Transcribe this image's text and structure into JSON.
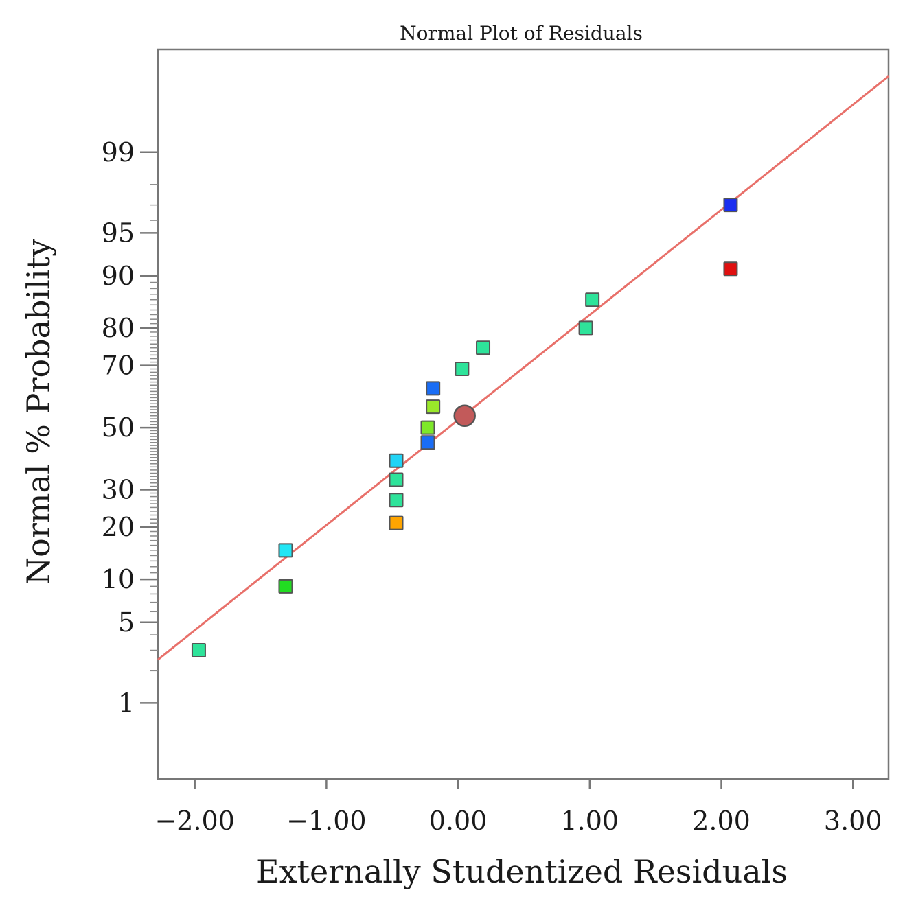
{
  "chart_data": {
    "type": "scatter",
    "title": "Normal Plot of Residuals",
    "xlabel": "Externally Studentized Residuals",
    "ylabel": "Normal % Probability",
    "x_ticks": [
      "-2.00",
      "-1.00",
      "0.00",
      "1.00",
      "2.00",
      "3.00"
    ],
    "y_ticks": [
      "1",
      "5",
      "10",
      "20",
      "30",
      "50",
      "70",
      "80",
      "90",
      "95",
      "99"
    ],
    "y_scale": "normal-probability",
    "xlim": [
      -2.28,
      3.27
    ],
    "ylim": [
      0.15,
      99.93
    ],
    "grid": false,
    "reference_line": {
      "x": [
        -2.28,
        3.27
      ],
      "y": [
        2.5,
        99.85
      ],
      "color": "#e8706a"
    },
    "points": [
      {
        "x": -1.97,
        "y": 3.0,
        "color": "#2ee39a"
      },
      {
        "x": -1.31,
        "y": 9.0,
        "color": "#22dd22"
      },
      {
        "x": -1.31,
        "y": 15.0,
        "color": "#22e6f5"
      },
      {
        "x": -0.47,
        "y": 21.0,
        "color": "#ffa500"
      },
      {
        "x": -0.47,
        "y": 27.0,
        "color": "#2ee39a"
      },
      {
        "x": -0.47,
        "y": 33.0,
        "color": "#2ee39a"
      },
      {
        "x": -0.47,
        "y": 39.0,
        "color": "#22d4f5"
      },
      {
        "x": -0.23,
        "y": 45.0,
        "color": "#1a6df5"
      },
      {
        "x": -0.23,
        "y": 50.0,
        "color": "#7ee82a"
      },
      {
        "x": -0.19,
        "y": 57.0,
        "color": "#9ae82a"
      },
      {
        "x": -0.19,
        "y": 63.0,
        "color": "#1a6df5"
      },
      {
        "x": 0.03,
        "y": 69.0,
        "color": "#2ee39a"
      },
      {
        "x": 0.19,
        "y": 75.0,
        "color": "#2ee39a"
      },
      {
        "x": 0.97,
        "y": 80.0,
        "color": "#2ee39a"
      },
      {
        "x": 1.02,
        "y": 86.0,
        "color": "#2ee39a"
      },
      {
        "x": 2.07,
        "y": 91.0,
        "color": "#e01010"
      },
      {
        "x": 2.07,
        "y": 97.0,
        "color": "#1a2ef0"
      }
    ],
    "highlight_point": {
      "x": 0.05,
      "y": 54.0,
      "color": "#c25a5a"
    }
  }
}
